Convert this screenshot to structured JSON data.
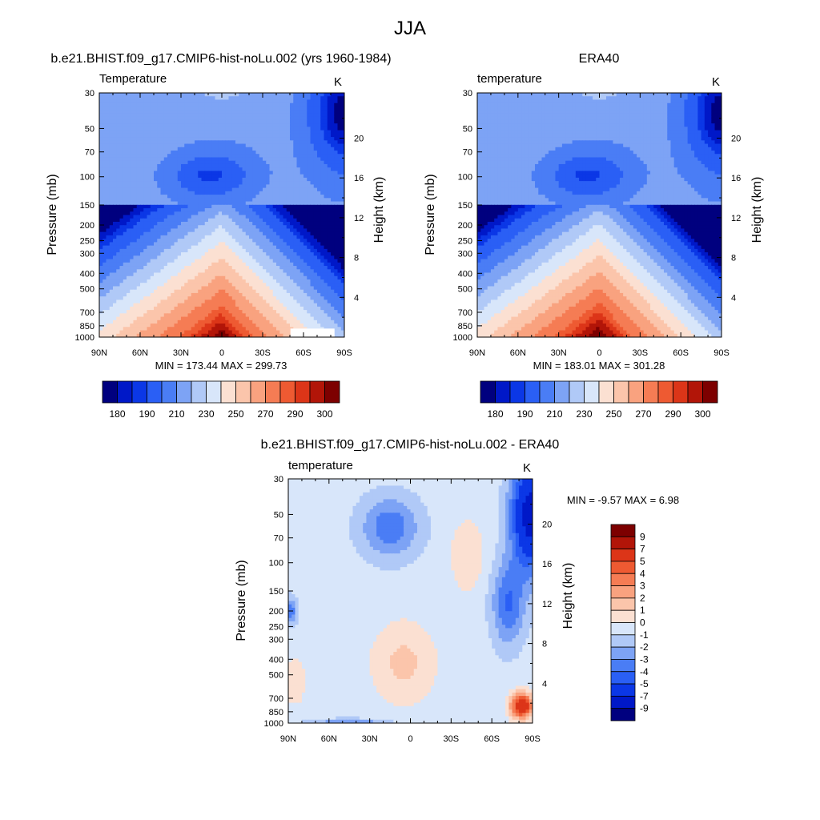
{
  "figure": {
    "title": "JJA"
  },
  "colors": {
    "abs_palette": [
      "#00007f",
      "#0018c8",
      "#0b37e6",
      "#2a5ff5",
      "#4a7df5",
      "#7da3f5",
      "#b0c9f7",
      "#d8e6fa",
      "#fbe0d2",
      "#fbc5ab",
      "#f9a27f",
      "#f57c54",
      "#ee5a32",
      "#dc3518",
      "#b21508",
      "#7d0000"
    ],
    "diff_palette": [
      "#00007f",
      "#0018c8",
      "#0b37e6",
      "#2a5ff5",
      "#4a7df5",
      "#7da3f5",
      "#b0c9f7",
      "#d8e6fa",
      "#fbe0d2",
      "#fbc5ab",
      "#f9a27f",
      "#f57c54",
      "#ee5a32",
      "#dc3518",
      "#b21508",
      "#7d0000"
    ]
  },
  "chart_data": [
    {
      "id": "model",
      "type": "contour",
      "title": "b.e21.BHIST.f09_g17.CMIP6-hist-noLu.002 (yrs 1960-1984)",
      "variable_label": "Temperature",
      "units": "K",
      "xlabel": "",
      "ylabel": "Pressure (mb)",
      "ylabel_right": "Height (km)",
      "x_ticks": [
        "90N",
        "60N",
        "30N",
        "0",
        "30S",
        "60S",
        "90S"
      ],
      "x_range": [
        90,
        -90
      ],
      "y_ticks": [
        "30",
        "50",
        "70",
        "100",
        "150",
        "200",
        "250",
        "300",
        "400",
        "500",
        "700",
        "850",
        "1000"
      ],
      "y_tick_values": [
        30,
        50,
        70,
        100,
        150,
        200,
        250,
        300,
        400,
        500,
        700,
        850,
        1000
      ],
      "y_range": [
        30,
        1000
      ],
      "y_right_ticks": [
        "4",
        "8",
        "12",
        "16",
        "20"
      ],
      "stats": "MIN = 173.44  MAX = 299.73",
      "min": 173.44,
      "max": 299.73,
      "colorbar_labels": [
        "180",
        "190",
        "210",
        "230",
        "250",
        "270",
        "290",
        "300"
      ],
      "contour_levels": [
        180,
        185,
        190,
        200,
        210,
        220,
        230,
        240,
        250,
        260,
        270,
        280,
        285,
        290,
        295,
        300
      ],
      "field_params": {
        "surface": 299.73,
        "tropopause_min": 173.44,
        "offset": 0
      }
    },
    {
      "id": "obs",
      "type": "contour",
      "title": "ERA40",
      "variable_label": "temperature",
      "units": "K",
      "xlabel": "",
      "ylabel": "Pressure (mb)",
      "ylabel_right": "Height (km)",
      "x_ticks": [
        "90N",
        "60N",
        "30N",
        "0",
        "30S",
        "60S",
        "90S"
      ],
      "x_range": [
        90,
        -90
      ],
      "y_ticks": [
        "30",
        "50",
        "70",
        "100",
        "150",
        "200",
        "250",
        "300",
        "400",
        "500",
        "700",
        "850",
        "1000"
      ],
      "y_tick_values": [
        30,
        50,
        70,
        100,
        150,
        200,
        250,
        300,
        400,
        500,
        700,
        850,
        1000
      ],
      "y_range": [
        30,
        1000
      ],
      "y_right_ticks": [
        "4",
        "8",
        "12",
        "16",
        "20"
      ],
      "stats": "MIN = 183.01  MAX = 301.28",
      "min": 183.01,
      "max": 301.28,
      "colorbar_labels": [
        "180",
        "190",
        "210",
        "230",
        "250",
        "270",
        "290",
        "300"
      ],
      "contour_levels": [
        180,
        185,
        190,
        200,
        210,
        220,
        230,
        240,
        250,
        260,
        270,
        280,
        285,
        290,
        295,
        300
      ],
      "field_params": {
        "surface": 301.28,
        "tropopause_min": 183.01,
        "offset": 0
      }
    },
    {
      "id": "diff",
      "type": "contour",
      "title": "b.e21.BHIST.f09_g17.CMIP6-hist-noLu.002 - ERA40",
      "variable_label": "temperature",
      "units": "K",
      "xlabel": "",
      "ylabel": "Pressure (mb)",
      "ylabel_right": "Height (km)",
      "x_ticks": [
        "90N",
        "60N",
        "30N",
        "0",
        "30S",
        "60S",
        "90S"
      ],
      "x_range": [
        90,
        -90
      ],
      "y_ticks": [
        "30",
        "50",
        "70",
        "100",
        "150",
        "200",
        "250",
        "300",
        "400",
        "500",
        "700",
        "850",
        "1000"
      ],
      "y_tick_values": [
        30,
        50,
        70,
        100,
        150,
        200,
        250,
        300,
        400,
        500,
        700,
        850,
        1000
      ],
      "y_range": [
        30,
        1000
      ],
      "y_right_ticks": [
        "4",
        "8",
        "12",
        "16",
        "20"
      ],
      "stats": "MIN =  -9.57  MAX =   6.98",
      "min": -9.57,
      "max": 6.98,
      "colorbar_labels": [
        "9",
        "7",
        "5",
        "4",
        "3",
        "2",
        "1",
        "0",
        "-1",
        "-2",
        "-3",
        "-4",
        "-5",
        "-7",
        "-9"
      ],
      "contour_levels": [
        -9,
        -7,
        -5,
        -4,
        -3,
        -2,
        -1,
        0,
        1,
        2,
        3,
        4,
        5,
        7,
        9
      ]
    }
  ]
}
